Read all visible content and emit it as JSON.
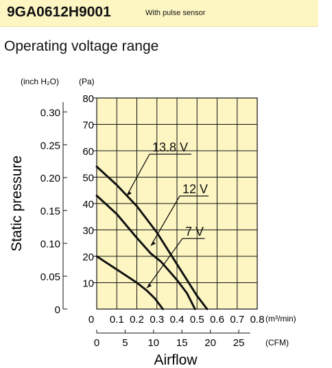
{
  "header": {
    "model": "9GA0612H9001",
    "subtitle": "With pulse sensor"
  },
  "section_title": "Operating voltage range",
  "colors": {
    "header_bg": "#fdf6c3",
    "plot_bg": "#fdf6c3",
    "grid": "#111111",
    "curve": "#111111"
  },
  "chart_data": {
    "type": "line",
    "title": "",
    "ylabel": "Static pressure",
    "xlabel": "Airflow",
    "xlim": [
      0,
      0.8
    ],
    "ylim": [
      0,
      80
    ],
    "x_unit": "(m³/min)",
    "x2_unit": "(CFM)",
    "y_unit_pa": "(Pa)",
    "y_unit_inch": "(inch H₂O)",
    "x_ticks": [
      "0",
      "0.1",
      "0.2",
      "0.3",
      "0.4",
      "0.5",
      "0.6",
      "0.7",
      "0.8"
    ],
    "x2_ticks": [
      "0",
      "5",
      "10",
      "15",
      "20",
      "25"
    ],
    "y_ticks_pa": [
      "10",
      "20",
      "30",
      "40",
      "50",
      "60",
      "70",
      "80"
    ],
    "y_ticks_inch": [
      "0",
      "0.05",
      "0.10",
      "0.15",
      "0.20",
      "0.25",
      "0.30"
    ],
    "grid": true,
    "series": [
      {
        "name": "13.8 V",
        "x": [
          0,
          0.1,
          0.2,
          0.3,
          0.35,
          0.4,
          0.45,
          0.5,
          0.55
        ],
        "y": [
          54,
          47,
          39,
          29,
          23,
          17,
          11,
          5,
          0
        ]
      },
      {
        "name": "12 V",
        "x": [
          0,
          0.1,
          0.2,
          0.27,
          0.32,
          0.4,
          0.45,
          0.49
        ],
        "y": [
          43,
          36,
          27,
          21,
          18,
          11,
          6,
          0
        ]
      },
      {
        "name": "7 V",
        "x": [
          0,
          0.1,
          0.2,
          0.25,
          0.29,
          0.33
        ],
        "y": [
          20,
          15,
          10,
          7,
          4,
          0
        ]
      }
    ],
    "annotations": [
      {
        "series": "13.8 V",
        "text": "13.8 V"
      },
      {
        "series": "12 V",
        "text": "12 V"
      },
      {
        "series": "7 V",
        "text": "7 V"
      }
    ]
  }
}
